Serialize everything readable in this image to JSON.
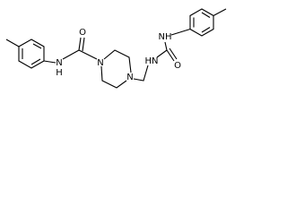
{
  "structure": {
    "labels": [
      "N",
      "H",
      "O",
      "N",
      "N",
      "HN",
      "NH",
      "O"
    ]
  }
}
